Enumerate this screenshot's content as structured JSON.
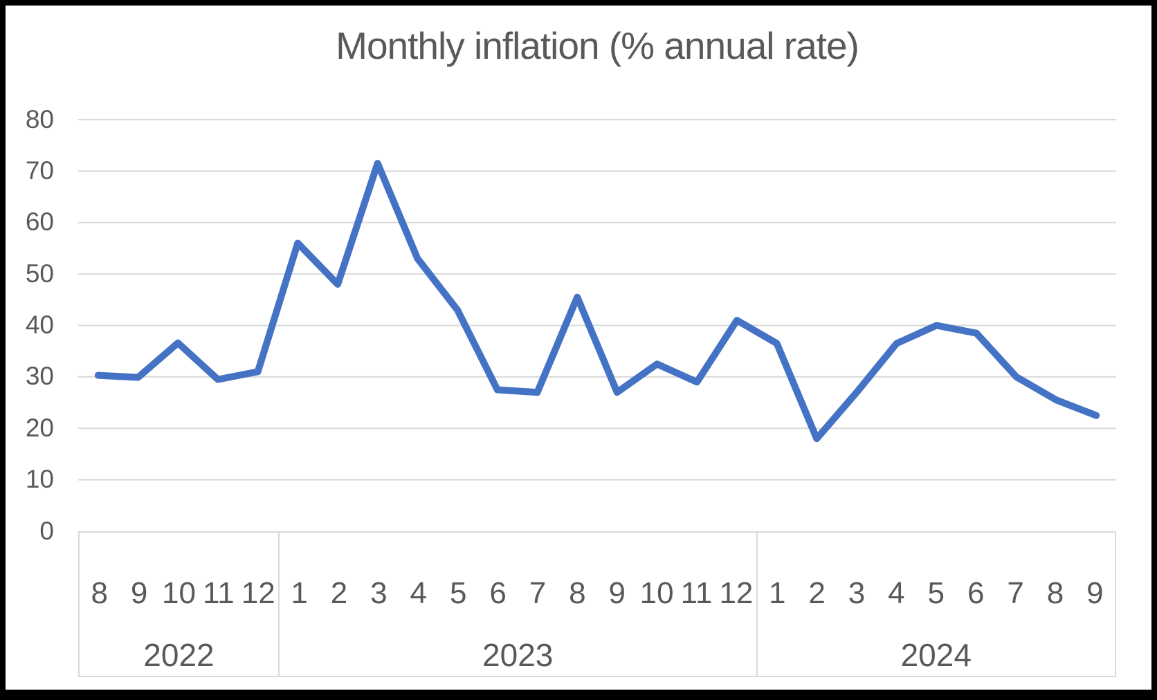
{
  "window": {
    "background": "#FFFFFF",
    "border_color": "#000000"
  },
  "chart": {
    "line_color": "#4472C4",
    "grid_color": "#D9D9D9",
    "label_color": "#595959",
    "title_color": "#595959"
  },
  "chart_data": {
    "type": "line",
    "title": "Monthly inflation (% annual rate)",
    "xlabel": "",
    "ylabel": "",
    "ylim": [
      0,
      80
    ],
    "y_ticks": [
      80,
      70,
      60,
      50,
      40,
      30,
      20,
      10,
      0
    ],
    "grid": true,
    "legend_position": "none",
    "x_groups": [
      {
        "year": "2022",
        "months": [
          "8",
          "9",
          "10",
          "11",
          "12"
        ]
      },
      {
        "year": "2023",
        "months": [
          "1",
          "2",
          "3",
          "4",
          "5",
          "6",
          "7",
          "8",
          "9",
          "10",
          "11",
          "12"
        ]
      },
      {
        "year": "2024",
        "months": [
          "1",
          "2",
          "3",
          "4",
          "5",
          "6",
          "7",
          "8",
          "9"
        ]
      }
    ],
    "series": [
      {
        "name": "Monthly inflation (% annual rate)",
        "values": [
          30.3,
          29.9,
          36.6,
          29.5,
          31,
          56,
          48,
          71.5,
          53,
          43,
          27.5,
          27,
          45.5,
          27,
          32.5,
          29,
          41,
          36.5,
          18,
          27,
          36.5,
          40,
          38.5,
          30,
          25.5,
          22.5
        ]
      }
    ]
  }
}
